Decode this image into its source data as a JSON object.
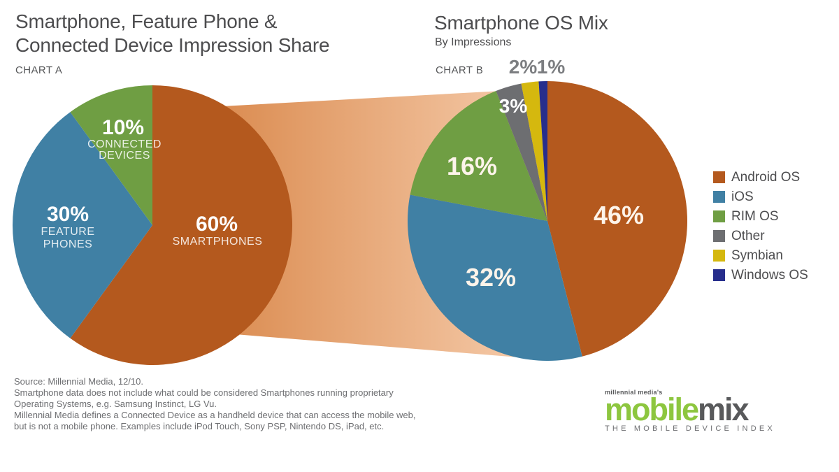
{
  "chart_data": [
    {
      "type": "pie",
      "name": "device-impression-share",
      "title": "Smartphone, Feature Phone & Connected Device Impression Share",
      "title_lines": [
        "Smartphone, Feature Phone &",
        "Connected Device Impression Share"
      ],
      "chart_label": "CHART A",
      "start_angle_deg": 0,
      "direction": "clockwise",
      "slices": [
        {
          "label": "SMARTPHONES",
          "label_lines": [
            "SMARTPHONES"
          ],
          "value": 60,
          "pct_label": "60%",
          "color": "#b4591e"
        },
        {
          "label": "FEATURE PHONES",
          "label_lines": [
            "FEATURE",
            "PHONES"
          ],
          "value": 30,
          "pct_label": "30%",
          "color": "#4080a4"
        },
        {
          "label": "CONNECTED DEVICES",
          "label_lines": [
            "CONNECTED",
            "DEVICES"
          ],
          "value": 10,
          "pct_label": "10%",
          "color": "#6f9e43"
        }
      ]
    },
    {
      "type": "pie",
      "name": "smartphone-os-mix",
      "title": "Smartphone OS Mix",
      "subtitle": "By Impressions",
      "chart_label": "CHART B",
      "start_angle_deg": 0,
      "direction": "clockwise",
      "legend_position": "right",
      "slices": [
        {
          "label": "Android OS",
          "value": 46,
          "pct_label": "46%",
          "color": "#b4591e"
        },
        {
          "label": "iOS",
          "value": 32,
          "pct_label": "32%",
          "color": "#4080a4"
        },
        {
          "label": "RIM OS",
          "value": 16,
          "pct_label": "16%",
          "color": "#6f9e43"
        },
        {
          "label": "Other",
          "value": 3,
          "pct_label": "3%",
          "color": "#6d6e71"
        },
        {
          "label": "Symbian",
          "value": 2,
          "pct_label": "2%",
          "color": "#d5b80e"
        },
        {
          "label": "Windows OS",
          "value": 1,
          "pct_label": "1%",
          "color": "#272e8c"
        }
      ]
    }
  ],
  "flow_band": {
    "description": "gradient band linking smartphones slice of Chart A to Chart B",
    "color_from": "#da8a4e",
    "color_to": "#f7cfb0"
  },
  "footnote": {
    "lines": [
      "Source: Millennial Media, 12/10.",
      "Smartphone data does not include what could be considered Smartphones running proprietary",
      "Operating Systems, e.g. Samsung Instinct, LG Vu.",
      "Millennial Media defines a Connected Device as a handheld device that can access the mobile web,",
      "but is not a mobile phone. Examples include iPod Touch, Sony PSP, Nintendo DS, iPad, etc."
    ]
  },
  "logo": {
    "prefix": "millennial media's",
    "word_green": "mobile",
    "word_dark": "mix",
    "tagline": "THE MOBILE DEVICE INDEX"
  }
}
